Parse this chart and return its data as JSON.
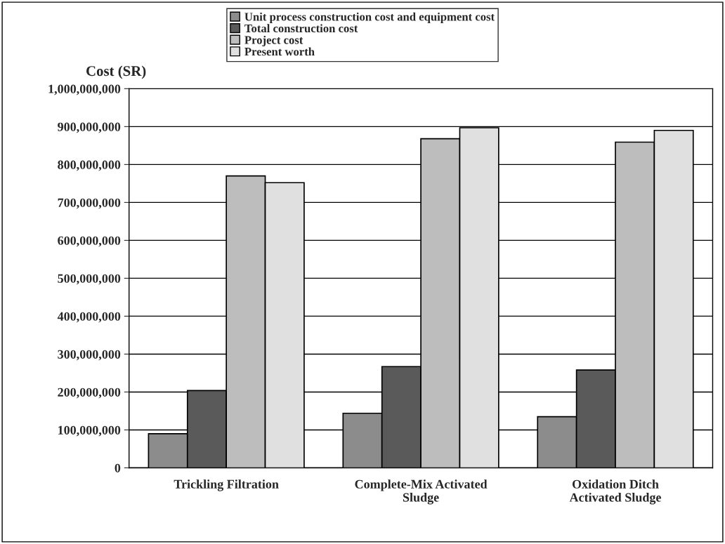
{
  "chart_data": {
    "type": "bar",
    "ylabel": "Cost (SR)",
    "categories": [
      "Trickling Filtration",
      "Complete-Mix Activated\nSludge",
      "Oxidation Ditch\nActivated Sludge"
    ],
    "series": [
      {
        "name": "Unit process construction cost and equipment cost",
        "color": "#8c8c8c",
        "values": [
          90000000,
          144000000,
          135000000
        ]
      },
      {
        "name": "Total construction cost",
        "color": "#5a5a5a",
        "values": [
          204000000,
          267000000,
          258000000
        ]
      },
      {
        "name": "Project cost",
        "color": "#bdbdbd",
        "values": [
          770000000,
          868000000,
          859000000
        ]
      },
      {
        "name": "Present worth",
        "color": "#e0e0e0",
        "values": [
          752000000,
          897000000,
          890000000
        ]
      }
    ],
    "ylim": [
      0,
      1000000000
    ],
    "yticks": [
      {
        "value": 0,
        "label": "0"
      },
      {
        "value": 100000000,
        "label": "100,000,000"
      },
      {
        "value": 200000000,
        "label": "200,000,000"
      },
      {
        "value": 300000000,
        "label": "300,000,000"
      },
      {
        "value": 400000000,
        "label": "400,000,000"
      },
      {
        "value": 500000000,
        "label": "500,000,000"
      },
      {
        "value": 600000000,
        "label": "600,000,000"
      },
      {
        "value": 700000000,
        "label": "700,000,000"
      },
      {
        "value": 800000000,
        "label": "800,000,000"
      },
      {
        "value": 900000000,
        "label": "900,000,000"
      },
      {
        "value": 1000000000,
        "label": "1,000,000,000"
      }
    ],
    "grid": "y",
    "legend": "top"
  }
}
